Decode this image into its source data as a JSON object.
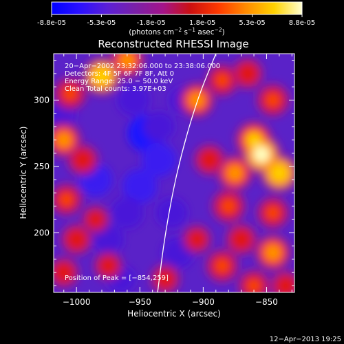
{
  "colorbar": {
    "ticks": [
      "-8.8e-05",
      "-5.3e-05",
      "-1.8e-05",
      "1.8e-05",
      "5.3e-05",
      "8.8e-05"
    ],
    "tick_values": [
      -8.8e-05,
      -5.3e-05,
      -1.8e-05,
      1.8e-05,
      5.3e-05,
      8.8e-05
    ],
    "range": [
      -8.8e-05,
      8.8e-05
    ],
    "unit_label_parts": {
      "a": "(photons cm",
      "exp1": "−2",
      "b": " s",
      "exp2": "−1",
      "c": " asec",
      "exp3": "−2",
      "d": ")"
    },
    "colormap": [
      "#0000ff",
      "#2a10ff",
      "#5b1fd6",
      "#7a20a8",
      "#a3148a",
      "#cc1010",
      "#ff3a00",
      "#ff8c00",
      "#ffd200",
      "#ffffd0"
    ]
  },
  "chart_data": {
    "type": "heatmap",
    "title": "Reconstructed RHESSI Image",
    "xlabel": "Heliocentric X (arcsec)",
    "ylabel": "Heliocentric Y (arcsec)",
    "xlim": [
      -1018,
      -828
    ],
    "ylim": [
      155,
      335
    ],
    "x_ticks": [
      -1000,
      -950,
      -900,
      -850
    ],
    "y_ticks": [
      200,
      250,
      300
    ],
    "x_tick_labels": [
      "−1000",
      "−950",
      "−900",
      "−850"
    ],
    "y_tick_labels": [
      "200",
      "250",
      "300"
    ],
    "annotations": [
      "20−Apr−2002 23:32:06.000 to 23:38:06.000",
      "Detectors: 4F 5F 6F 7F 8F, Att 0",
      "Energy Range: 25.0 − 50.0 keV",
      "Clean    Total counts: 3.97E+03"
    ],
    "peak_label": "Position of Peak = [−854,259]",
    "peak": [
      -854,
      259
    ],
    "limb_curve": [
      [
        -936,
        155
      ],
      [
        -930,
        200
      ],
      [
        -920,
        250
      ],
      [
        -905,
        300
      ],
      [
        -890,
        335
      ]
    ],
    "hot_regions": [
      {
        "x": -1005,
        "y": 305,
        "v": 0.6
      },
      {
        "x": -980,
        "y": 318,
        "v": 0.9
      },
      {
        "x": -960,
        "y": 330,
        "v": 0.7
      },
      {
        "x": -1010,
        "y": 270,
        "v": 0.7
      },
      {
        "x": -995,
        "y": 255,
        "v": 0.5
      },
      {
        "x": -1008,
        "y": 225,
        "v": 0.55
      },
      {
        "x": -1000,
        "y": 195,
        "v": 0.5
      },
      {
        "x": -985,
        "y": 210,
        "v": 0.3
      },
      {
        "x": -1010,
        "y": 170,
        "v": 0.45
      },
      {
        "x": -975,
        "y": 175,
        "v": 0.35
      },
      {
        "x": -930,
        "y": 165,
        "v": 0.4
      },
      {
        "x": -905,
        "y": 300,
        "v": 0.7
      },
      {
        "x": -885,
        "y": 315,
        "v": 0.55
      },
      {
        "x": -865,
        "y": 320,
        "v": 0.5
      },
      {
        "x": -845,
        "y": 300,
        "v": 0.6
      },
      {
        "x": -860,
        "y": 270,
        "v": 0.85
      },
      {
        "x": -854,
        "y": 259,
        "v": 1.0
      },
      {
        "x": -840,
        "y": 245,
        "v": 0.9
      },
      {
        "x": -875,
        "y": 245,
        "v": 0.75
      },
      {
        "x": -895,
        "y": 255,
        "v": 0.5
      },
      {
        "x": -880,
        "y": 220,
        "v": 0.65
      },
      {
        "x": -845,
        "y": 215,
        "v": 0.55
      },
      {
        "x": -870,
        "y": 195,
        "v": 0.5
      },
      {
        "x": -845,
        "y": 185,
        "v": 0.75
      },
      {
        "x": -885,
        "y": 175,
        "v": 0.6
      },
      {
        "x": -860,
        "y": 160,
        "v": 0.55
      },
      {
        "x": -835,
        "y": 160,
        "v": 0.45
      },
      {
        "x": -905,
        "y": 195,
        "v": 0.35
      }
    ],
    "cold_regions": [
      {
        "x": -945,
        "y": 275,
        "v": 0.55
      },
      {
        "x": -935,
        "y": 255,
        "v": 0.45
      },
      {
        "x": -955,
        "y": 300,
        "v": 0.35
      },
      {
        "x": -985,
        "y": 240,
        "v": 0.4
      },
      {
        "x": -950,
        "y": 235,
        "v": 0.45
      },
      {
        "x": -960,
        "y": 215,
        "v": 0.35
      },
      {
        "x": -925,
        "y": 215,
        "v": 0.3
      },
      {
        "x": -975,
        "y": 195,
        "v": 0.3
      },
      {
        "x": -920,
        "y": 185,
        "v": 0.35
      },
      {
        "x": -935,
        "y": 280,
        "v": 0.3
      },
      {
        "x": -915,
        "y": 300,
        "v": 0.25
      },
      {
        "x": -1012,
        "y": 290,
        "v": 0.25
      },
      {
        "x": -965,
        "y": 165,
        "v": 0.2
      }
    ]
  },
  "footer": {
    "timestamp": "12−Apr−2013 19:25"
  }
}
